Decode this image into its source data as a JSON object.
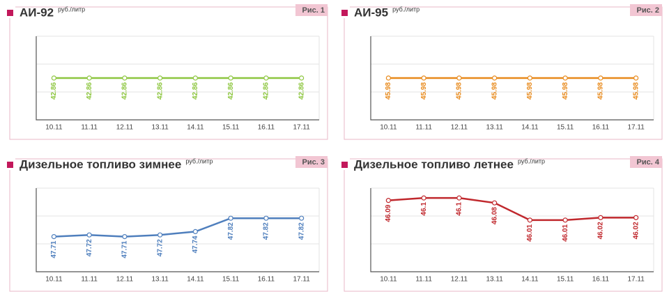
{
  "chart_data": [
    {
      "type": "line",
      "title": "АИ-92",
      "unit": "руб./литр",
      "figure": "Рис. 1",
      "color": "#8dc63f",
      "categories": [
        "10.11",
        "11.11",
        "12.11",
        "13.11",
        "14.11",
        "15.11",
        "16.11",
        "17.11"
      ],
      "values": [
        42.86,
        42.86,
        42.86,
        42.86,
        42.86,
        42.86,
        42.86,
        42.86
      ],
      "ylim": [
        42.76,
        42.96
      ]
    },
    {
      "type": "line",
      "title": "АИ-95",
      "unit": "руб./литр",
      "figure": "Рис. 2",
      "color": "#e8891a",
      "categories": [
        "10.11",
        "11.11",
        "12.11",
        "13.11",
        "14.11",
        "15.11",
        "16.11",
        "17.11"
      ],
      "values": [
        45.98,
        45.98,
        45.98,
        45.98,
        45.98,
        45.98,
        45.98,
        45.98
      ],
      "ylim": [
        45.88,
        46.08
      ]
    },
    {
      "type": "line",
      "title": "Дизельное топливо зимнее",
      "unit": "руб./литр",
      "figure": "Рис. 3",
      "color": "#4f7fbd",
      "categories": [
        "10.11",
        "11.11",
        "12.11",
        "13.11",
        "14.11",
        "15.11",
        "16.11",
        "17.11"
      ],
      "values": [
        47.71,
        47.72,
        47.71,
        47.72,
        47.74,
        47.82,
        47.82,
        47.82
      ],
      "ylim": [
        47.5,
        48.0
      ]
    },
    {
      "type": "line",
      "title": "Дизельное топливо летнее",
      "unit": "руб./литр",
      "figure": "Рис. 4",
      "color": "#c0282d",
      "categories": [
        "10.11",
        "11.11",
        "12.11",
        "13.11",
        "14.11",
        "15.11",
        "16.11",
        "17.11"
      ],
      "values": [
        46.09,
        46.1,
        46.1,
        46.08,
        46.01,
        46.01,
        46.02,
        46.02
      ],
      "ylim": [
        45.8,
        46.14
      ]
    }
  ]
}
